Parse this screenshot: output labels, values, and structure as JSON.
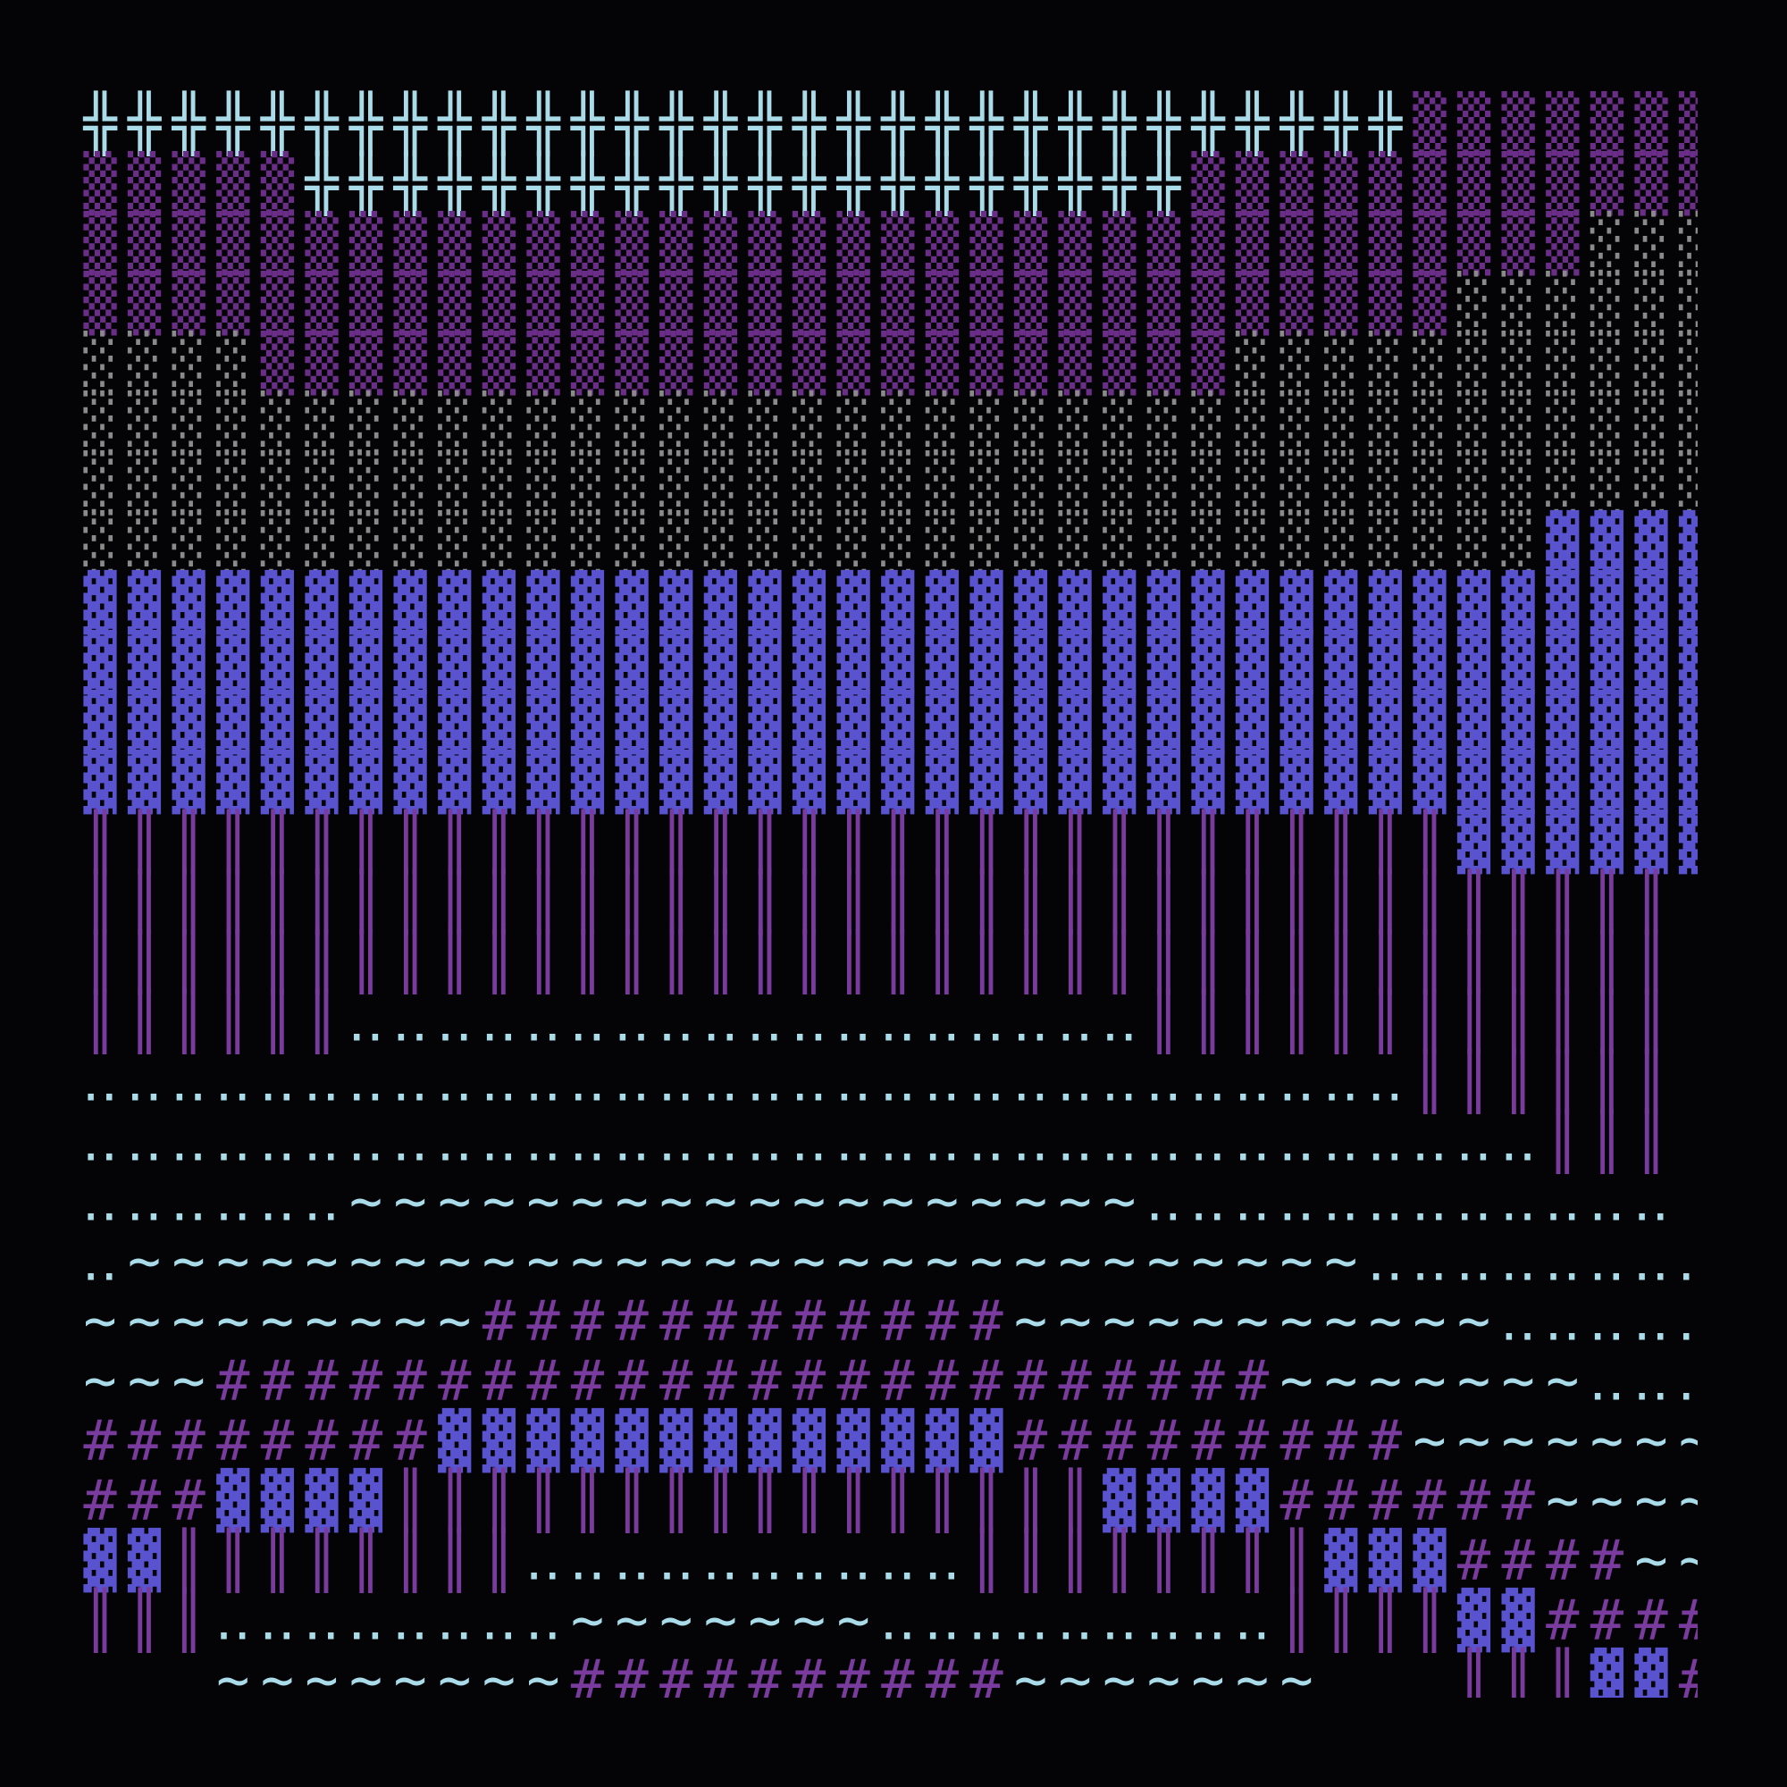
{
  "grid": {
    "rows": [
      "╬╬╬╬╬╬╬╬╬╬╬╬╬╬╬╬╬╬╬╬╬╬╬╬╬╬╬╬╬╬▒▒▒▒▒▒▒",
      "▒▒▒▒▒╬╬╬╬╬╬╬╬╬╬╬╬╬╬╬╬╬╬╬╬▒▒▒▒▒▒▒▒▒▒▒▒",
      "▒▒▒▒▒▒▒▒▒▒▒▒▒▒▒▒▒▒▒▒▒▒▒▒▒▒▒▒▒▒▒▒▒▒░░░",
      "▒▒▒▒▒▒▒▒▒▒▒▒▒▒▒▒▒▒▒▒▒▒▒▒▒▒▒▒▒▒▒░░░░░░",
      "░░░░▒▒▒▒▒▒▒▒▒▒▒▒▒▒▒▒▒▒▒▒▒▒░░░░░░░░░░░",
      "░░░░░░░░░░░░░░░░░░░░░░░░░░░░░░░░░░░░░",
      "░░░░░░░░░░░░░░░░░░░░░░░░░░░░░░░░░░░░░",
      "░░░░░░░░░░░░░░░░░░░░░░░░░░░░░░░░░▓▓▓▓",
      "▓▓▓▓▓▓▓▓▓▓▓▓▓▓▓▓▓▓▓▓▓▓▓▓▓▓▓▓▓▓▓▓▓▓▓▓▓",
      "▓▓▓▓▓▓▓▓▓▓▓▓▓▓▓▓▓▓▓▓▓▓▓▓▓▓▓▓▓▓▓▓▓▓▓▓▓",
      "▓▓▓▓▓▓▓▓▓▓▓▓▓▓▓▓▓▓▓▓▓▓▓▓▓▓▓▓▓▓▓▓▓▓▓▓▓",
      "▓▓▓▓▓▓▓▓▓▓▓▓▓▓▓▓▓▓▓▓▓▓▓▓▓▓▓▓▓▓▓▓▓▓▓▓▓",
      "║║║║║║║║║║║║║║║║║║║║║║║║║║║║║║║▓▓▓▓▓▓",
      "║║║║║║║║║║║║║║║║║║║║║║║║║║║║║║║║║║║║ ",
      "║║║║║║║║║║║║║║║║║║║║║║║║║║║║║║║║║║║║ ",
      "║║║║║║‥‥‥‥‥‥‥‥‥‥‥‥‥‥‥‥‥‥║║║║║║║║║║║║ ",
      "‥‥‥‥‥‥‥‥‥‥‥‥‥‥‥‥‥‥‥‥‥‥‥‥‥‥‥‥‥‥║║║║║║ ",
      "‥‥‥‥‥‥‥‥‥‥‥‥‥‥‥‥‥‥‥‥‥‥‥‥‥‥‥‥‥‥‥‥‥║║║ ",
      "‥‥‥‥‥‥~~~~~~~~~~~~~~~~~~‥‥‥‥‥‥‥‥‥‥‥‥ ",
      "‥~~~~~~~~~~~~~~~~~~~~~~~~~~~~‥‥‥‥‥‥‥‥",
      "~~~~~~~~~############~~~~~~~~~~~‥‥‥‥‥",
      "~~~########################~~~~~~~‥‥‥",
      "########▓▓▓▓▓▓▓▓▓▓▓▓▓#########~~~~~~~",
      "###▓▓▓▓║║║║║║║║║║║║║║║║▓▓▓▓######~~~~",
      "▓▓║║║║║║║║‥‥‥‥‥‥‥‥‥‥║║║║║║║║▓▓▓####~~",
      "║║║‥‥‥‥‥‥‥‥~~~~~~~‥‥‥‥‥‥‥‥‥║║║║▓▓####",
      "   ~~~~~~~~##########~~~~~~~   ║║║▓▓#"
    ]
  }
}
